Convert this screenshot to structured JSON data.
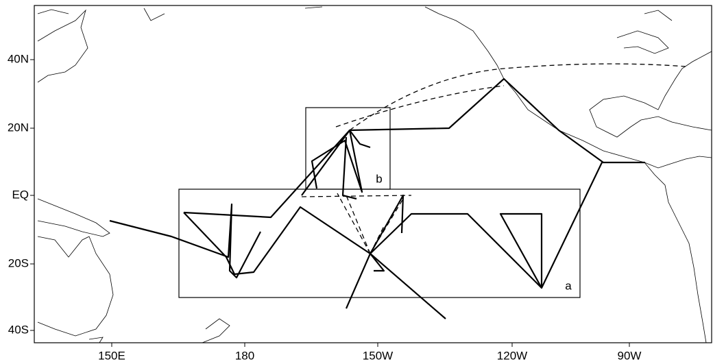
{
  "map": {
    "lat_labels": [
      "40N",
      "20N",
      "EQ",
      "20S",
      "40S"
    ],
    "lon_labels": [
      "150E",
      "180",
      "150W",
      "120W",
      "90W"
    ],
    "boxes": [
      {
        "label": "a"
      },
      {
        "label": "b"
      }
    ]
  }
}
